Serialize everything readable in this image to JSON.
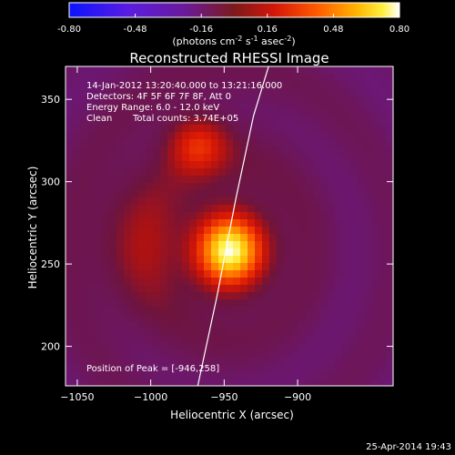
{
  "chart_data": {
    "type": "heatmap",
    "title": "Reconstructed RHESSI Image",
    "xlabel": "Heliocentric X (arcsec)",
    "ylabel": "Heliocentric Y (arcsec)",
    "xlim": [
      -1058,
      -835
    ],
    "ylim": [
      176,
      370
    ],
    "xticks": [
      -1050,
      -1000,
      -950,
      -900
    ],
    "yticks": [
      200,
      250,
      300,
      350
    ],
    "colorbar": {
      "colormap": "hot-metal (blue to white)",
      "ticks": [
        "-0.80",
        "-0.48",
        "-0.16",
        "0.16",
        "0.48",
        "0.80"
      ],
      "range": [
        -0.8,
        0.8
      ],
      "unit_prefix": "(photons cm",
      "unit_exp1": "-2",
      "unit_mid": " s",
      "unit_exp2": "-1",
      "unit_mid2": " asec",
      "unit_exp3": "-2",
      "unit_suffix": ")"
    },
    "annotations": {
      "time": "14-Jan-2012 13:20:40.000 to 13:21:16.000",
      "detectors": "Detectors: 4F 5F 6F 7F 8F, Att 0",
      "energy": "Energy Range: 6.0 - 12.0 keV",
      "method": "Clean",
      "counts": "Total counts: 3.74E+05",
      "peak": "Position of Peak = [-946,258]"
    },
    "sources": [
      {
        "x": -946,
        "y": 258,
        "peak": 0.8
      },
      {
        "x": -968,
        "y": 322,
        "peak": 0.33
      },
      {
        "x": -1010,
        "y": 262,
        "peak": 0.14
      }
    ],
    "limb_curve": {
      "x": [
        -968,
        -955,
        -942,
        -930,
        -917
      ],
      "y": [
        176,
        230,
        290,
        340,
        378
      ]
    },
    "date_stamp": "25-Apr-2014 19:43"
  }
}
